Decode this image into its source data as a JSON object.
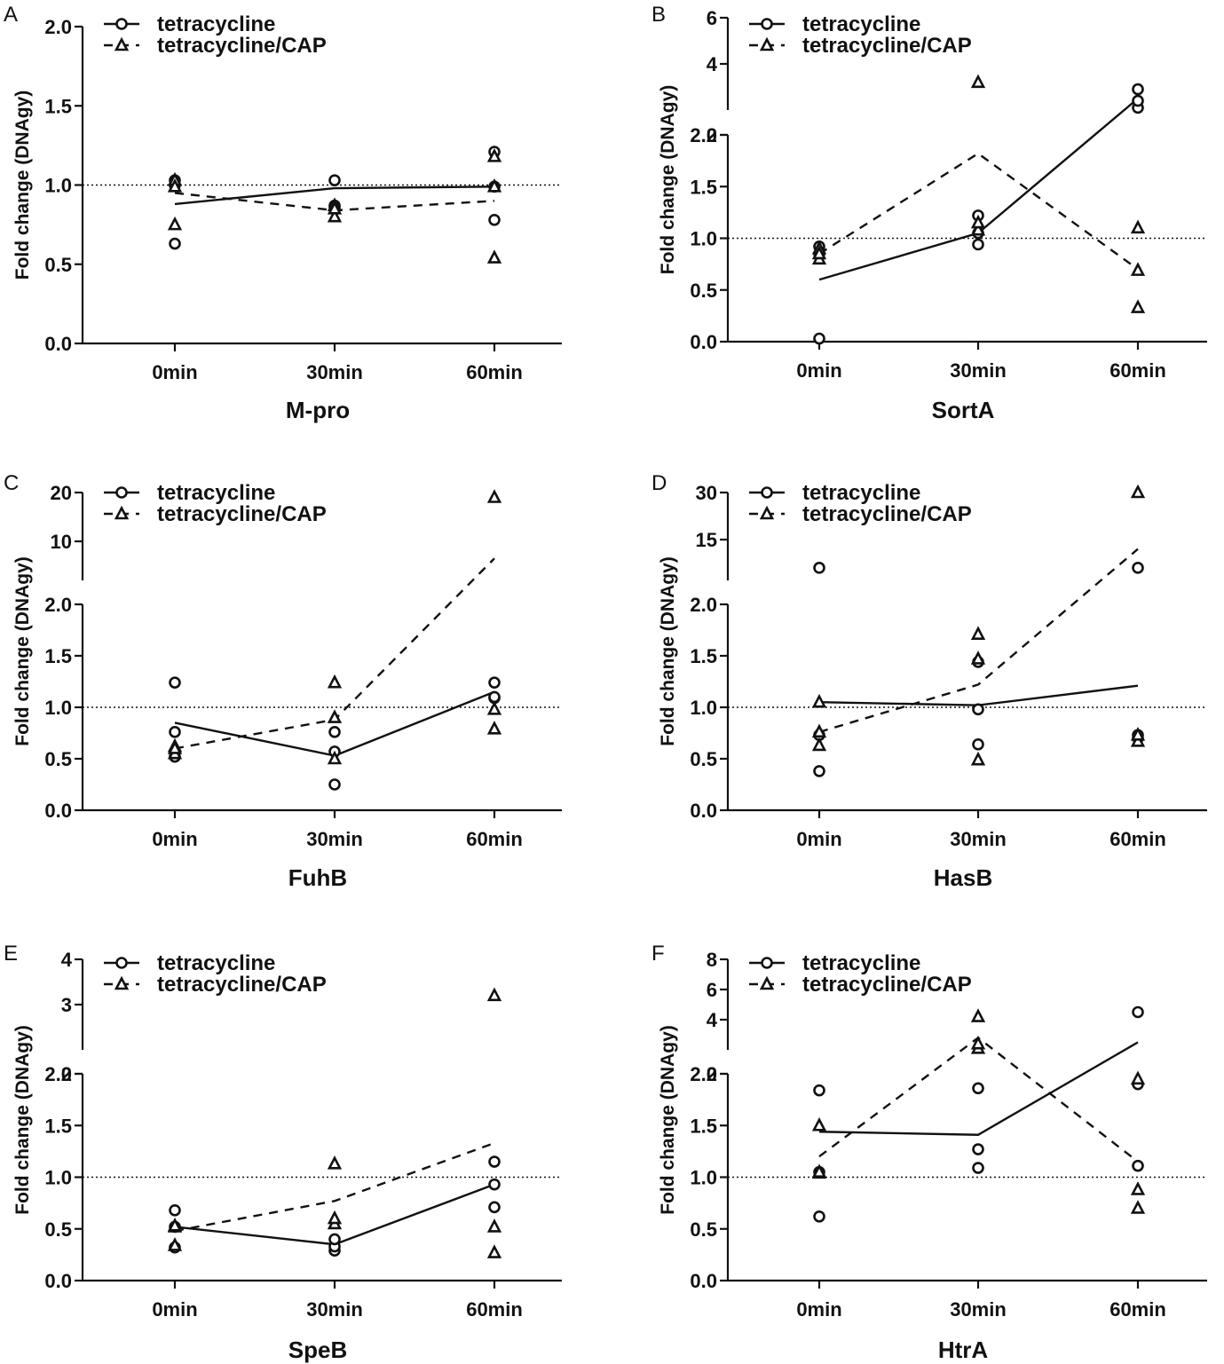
{
  "chart_data": [
    {
      "panel": "A",
      "type": "line",
      "title": "M-pro",
      "ylabel": "Fold change (DNAgy)",
      "categories": [
        "0min",
        "30min",
        "60min"
      ],
      "legend": [
        "tetracycline",
        "tetracycline/CAP"
      ],
      "ref_line": 1.0,
      "lower": {
        "ticks": [
          0.0,
          0.5,
          1.0,
          1.5,
          2.0
        ],
        "tick_labels": [
          "0.0",
          "0.5",
          "1.0",
          "1.5",
          "2.0"
        ],
        "range": [
          0,
          2
        ]
      },
      "upper": null,
      "series": [
        {
          "name": "tetracycline",
          "mean": [
            0.88,
            0.98,
            0.99
          ],
          "points": [
            [
              0.63,
              1.0,
              1.03
            ],
            [
              1.03,
              0.86,
              0.87
            ],
            [
              1.21,
              0.78,
              0.99
            ]
          ]
        },
        {
          "name": "tetracycline/CAP",
          "mean": [
            0.95,
            0.84,
            0.9
          ],
          "points": [
            [
              0.75,
              1.03,
              0.99
            ],
            [
              0.8,
              0.87,
              0.85
            ],
            [
              0.54,
              1.18,
              0.99
            ]
          ]
        }
      ]
    },
    {
      "panel": "B",
      "type": "line",
      "title": "SortA",
      "ylabel": "Fold change (DNAgy)",
      "categories": [
        "0min",
        "30min",
        "60min"
      ],
      "legend": [
        "tetracycline",
        "tetracycline/CAP"
      ],
      "ref_line": 1.0,
      "lower": {
        "ticks": [
          0.0,
          0.5,
          1.0,
          1.5,
          2.0
        ],
        "tick_labels": [
          "0.0",
          "0.5",
          "1.0",
          "1.5",
          "2.0"
        ],
        "range": [
          0,
          2
        ]
      },
      "upper": {
        "ticks": [
          2,
          4,
          6
        ],
        "tick_labels": [
          "2",
          "4",
          "6"
        ],
        "range": [
          2,
          6
        ]
      },
      "series": [
        {
          "name": "tetracycline",
          "mean": [
            0.6,
            1.05,
            2.5
          ],
          "points": [
            [
              0.03,
              0.92,
              0.85
            ],
            [
              0.94,
              1.05,
              1.22
            ],
            [
              2.1,
              2.4,
              2.9
            ]
          ]
        },
        {
          "name": "tetracycline/CAP",
          "mean": [
            0.85,
            1.82,
            0.7
          ],
          "points": [
            [
              0.8,
              0.9,
              0.85
            ],
            [
              3.2,
              1.08,
              1.15
            ],
            [
              0.33,
              0.69,
              1.1
            ]
          ]
        }
      ]
    },
    {
      "panel": "C",
      "type": "line",
      "title": "FuhB",
      "ylabel": "Fold change (DNAgy)",
      "categories": [
        "0min",
        "30min",
        "60min"
      ],
      "legend": [
        "tetracycline",
        "tetracycline/CAP"
      ],
      "ref_line": 1.0,
      "lower": {
        "ticks": [
          0.0,
          0.5,
          1.0,
          1.5,
          2.0
        ],
        "tick_labels": [
          "0.0",
          "0.5",
          "1.0",
          "1.5",
          "2.0"
        ],
        "range": [
          0,
          2
        ]
      },
      "upper": {
        "ticks": [
          10,
          20
        ],
        "tick_labels": [
          "10",
          "20"
        ],
        "range": [
          2,
          20
        ]
      },
      "series": [
        {
          "name": "tetracycline",
          "mean": [
            0.85,
            0.53,
            1.15
          ],
          "points": [
            [
              0.52,
              0.76,
              1.24
            ],
            [
              0.25,
              0.57,
              0.76
            ],
            [
              1.09,
              1.24,
              1.1
            ]
          ]
        },
        {
          "name": "tetracycline/CAP",
          "mean": [
            0.6,
            0.88,
            6.5
          ],
          "points": [
            [
              0.55,
              0.62,
              0.6
            ],
            [
              0.5,
              0.9,
              1.24
            ],
            [
              0.79,
              0.98,
              19.0
            ]
          ]
        }
      ]
    },
    {
      "panel": "D",
      "type": "line",
      "title": "HasB",
      "ylabel": "Fold change (DNAgy)",
      "categories": [
        "0min",
        "30min",
        "60min"
      ],
      "legend": [
        "tetracycline",
        "tetracycline/CAP"
      ],
      "ref_line": 1.0,
      "lower": {
        "ticks": [
          0.0,
          0.5,
          1.0,
          1.5,
          2.0
        ],
        "tick_labels": [
          "0.0",
          "0.5",
          "1.0",
          "1.5",
          "2.0"
        ],
        "range": [
          0,
          2
        ]
      },
      "upper": {
        "ticks": [
          15,
          30
        ],
        "tick_labels": [
          "15",
          "30"
        ],
        "range": [
          2,
          30
        ]
      },
      "series": [
        {
          "name": "tetracycline",
          "mean": [
            1.05,
            1.02,
            1.21
          ],
          "points": [
            [
              0.38,
              0.73,
              6.0
            ],
            [
              0.64,
              0.98,
              1.44
            ],
            [
              0.7,
              0.73,
              6.0
            ]
          ]
        },
        {
          "name": "tetracycline/CAP",
          "mean": [
            0.76,
            1.22,
            12.0
          ],
          "points": [
            [
              0.63,
              1.05,
              0.76
            ],
            [
              0.49,
              1.47,
              1.71
            ],
            [
              0.67,
              0.73,
              30.0
            ]
          ]
        }
      ]
    },
    {
      "panel": "E",
      "type": "line",
      "title": "SpeB",
      "ylabel": "Fold change (DNAgy)",
      "categories": [
        "0min",
        "30min",
        "60min"
      ],
      "legend": [
        "tetracycline",
        "tetracycline/CAP"
      ],
      "ref_line": 1.0,
      "lower": {
        "ticks": [
          0.0,
          0.5,
          1.0,
          1.5,
          2.0
        ],
        "tick_labels": [
          "0.0",
          "0.5",
          "1.0",
          "1.5",
          "2.0"
        ],
        "range": [
          0,
          2
        ]
      },
      "upper": {
        "ticks": [
          2,
          3,
          4
        ],
        "tick_labels": [
          "2",
          "3",
          "4"
        ],
        "range": [
          2,
          4
        ]
      },
      "series": [
        {
          "name": "tetracycline",
          "mean": [
            0.52,
            0.35,
            0.93
          ],
          "points": [
            [
              0.32,
              0.52,
              0.68
            ],
            [
              0.29,
              0.33,
              0.4
            ],
            [
              0.71,
              0.93,
              1.15
            ]
          ]
        },
        {
          "name": "tetracycline/CAP",
          "mean": [
            0.48,
            0.77,
            1.33
          ],
          "points": [
            [
              0.34,
              0.52,
              0.53
            ],
            [
              0.55,
              0.6,
              1.13
            ],
            [
              0.27,
              0.52,
              3.2
            ]
          ]
        }
      ]
    },
    {
      "panel": "F",
      "type": "line",
      "title": "HtrA",
      "ylabel": "Fold change (DNAgy)",
      "categories": [
        "0min",
        "30min",
        "60min"
      ],
      "legend": [
        "tetracycline",
        "tetracycline/CAP"
      ],
      "ref_line": 1.0,
      "lower": {
        "ticks": [
          0.0,
          0.5,
          1.0,
          1.5,
          2.0
        ],
        "tick_labels": [
          "0.0",
          "0.5",
          "1.0",
          "1.5",
          "2.0"
        ],
        "range": [
          0,
          2
        ]
      },
      "upper": {
        "ticks": [
          2,
          4,
          6,
          8
        ],
        "tick_labels": [
          "2",
          "4",
          "6",
          "8"
        ],
        "range": [
          2,
          8
        ]
      },
      "series": [
        {
          "name": "tetracycline",
          "mean": [
            1.44,
            1.41,
            2.5
          ],
          "points": [
            [
              0.62,
              1.05,
              1.84
            ],
            [
              1.09,
              1.27,
              1.86
            ],
            [
              1.11,
              1.9,
              4.5
            ]
          ]
        },
        {
          "name": "tetracycline/CAP",
          "mean": [
            1.2,
            2.8,
            1.15
          ],
          "points": [
            [
              1.04,
              1.5,
              1.05
            ],
            [
              2.1,
              2.4,
              4.2
            ],
            [
              0.7,
              0.88,
              1.95
            ]
          ]
        }
      ]
    }
  ]
}
